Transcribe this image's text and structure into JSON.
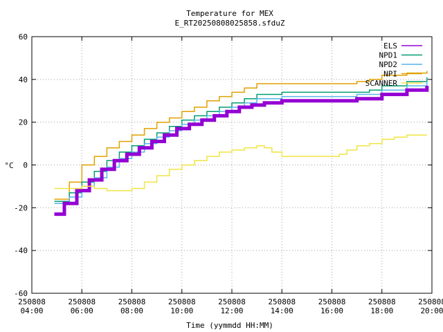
{
  "chart_data": {
    "type": "line",
    "title": "Temperature for MEX",
    "subtitle": "E_RT20250808025858.sfduZ",
    "xlabel": "Time (yymmdd HH:MM)",
    "ylabel": "°C",
    "xlim": [
      "250808 04:00",
      "250808 20:00"
    ],
    "ylim": [
      -60,
      60
    ],
    "y_ticks": [
      -60,
      -40,
      -20,
      0,
      20,
      40,
      60
    ],
    "x_ticks": [
      {
        "date": "250808",
        "time": "04:00",
        "h": 4
      },
      {
        "date": "250808",
        "time": "06:00",
        "h": 6
      },
      {
        "date": "250808",
        "time": "08:00",
        "h": 8
      },
      {
        "date": "250808",
        "time": "10:00",
        "h": 10
      },
      {
        "date": "250808",
        "time": "12:00",
        "h": 12
      },
      {
        "date": "250808",
        "time": "14:00",
        "h": 14
      },
      {
        "date": "250808",
        "time": "16:00",
        "h": 16
      },
      {
        "date": "250808",
        "time": "18:00",
        "h": 18
      },
      {
        "date": "250808",
        "time": "20:00",
        "h": 20
      }
    ],
    "grid": true,
    "legend_position": "top-right",
    "series": [
      {
        "name": "NPI",
        "color": "#e0a000",
        "x": [
          4.9,
          5.5,
          6.0,
          6.5,
          7.0,
          7.5,
          8.0,
          8.5,
          9.0,
          9.5,
          10.0,
          10.5,
          11.0,
          11.5,
          12.0,
          12.5,
          13.0,
          13.5,
          14.0,
          15.0,
          16.0,
          17.0,
          17.5,
          18.0,
          19.0,
          19.8
        ],
        "y": [
          -16,
          -8,
          0,
          4,
          8,
          11,
          14,
          17,
          20,
          22,
          25,
          27,
          30,
          32,
          34,
          36,
          38,
          38,
          38,
          38,
          38,
          39,
          40,
          42,
          43,
          44
        ]
      },
      {
        "name": "NPD1",
        "color": "#009e73",
        "x": [
          4.9,
          5.5,
          6.0,
          6.5,
          7.0,
          7.5,
          8.0,
          8.5,
          9.0,
          9.5,
          10.0,
          10.5,
          11.0,
          11.5,
          12.0,
          12.5,
          13.0,
          14.0,
          15.0,
          16.0,
          17.0,
          17.5,
          18.0,
          19.0,
          19.8
        ],
        "y": [
          -17,
          -13,
          -8,
          -3,
          2,
          6,
          9,
          12,
          15,
          18,
          21,
          23,
          25,
          27,
          29,
          31,
          33,
          34,
          34,
          34,
          34,
          35,
          37,
          39,
          41
        ]
      },
      {
        "name": "NPD2",
        "color": "#56b4e9",
        "x": [
          4.9,
          5.5,
          6.0,
          6.5,
          7.0,
          7.5,
          8.0,
          8.5,
          9.0,
          9.5,
          10.0,
          10.5,
          11.0,
          11.5,
          12.0,
          12.5,
          13.0,
          14.0,
          15.0,
          16.0,
          17.0,
          18.0,
          19.0,
          19.8
        ],
        "y": [
          -18,
          -15,
          -10,
          -6,
          -1,
          3,
          6,
          10,
          13,
          16,
          19,
          21,
          23,
          25,
          27,
          29,
          31,
          32,
          32,
          32,
          33,
          35,
          37,
          39
        ]
      },
      {
        "name": "ELS",
        "color": "#9400d3",
        "x": [
          4.9,
          5.3,
          5.8,
          6.3,
          6.8,
          7.3,
          7.8,
          8.3,
          8.8,
          9.3,
          9.8,
          10.3,
          10.8,
          11.3,
          11.8,
          12.3,
          12.8,
          13.3,
          14.0,
          15.0,
          16.0,
          17.0,
          18.0,
          19.0,
          19.8
        ],
        "y": [
          -23,
          -18,
          -12,
          -7,
          -2,
          2,
          5,
          8,
          11,
          14,
          17,
          19,
          21,
          23,
          25,
          27,
          28,
          29,
          30,
          30,
          30,
          31,
          33,
          35,
          37
        ]
      },
      {
        "name": "SCANNER",
        "color": "#f0e442",
        "x": [
          4.9,
          5.5,
          6.0,
          6.5,
          7.0,
          7.5,
          8.0,
          8.5,
          9.0,
          9.5,
          10.0,
          10.5,
          11.0,
          11.5,
          12.0,
          12.5,
          13.0,
          13.3,
          13.6,
          14.0,
          14.5,
          15.0,
          15.5,
          16.0,
          16.3,
          16.6,
          17.0,
          17.5,
          18.0,
          18.5,
          19.0,
          19.8
        ],
        "y": [
          -11,
          -11,
          -10,
          -11,
          -12,
          -12,
          -11,
          -8,
          -5,
          -2,
          0,
          2,
          4,
          6,
          7,
          8,
          9,
          8,
          6,
          4,
          4,
          4,
          4,
          4,
          5,
          7,
          9,
          10,
          12,
          13,
          14,
          14
        ]
      }
    ]
  }
}
